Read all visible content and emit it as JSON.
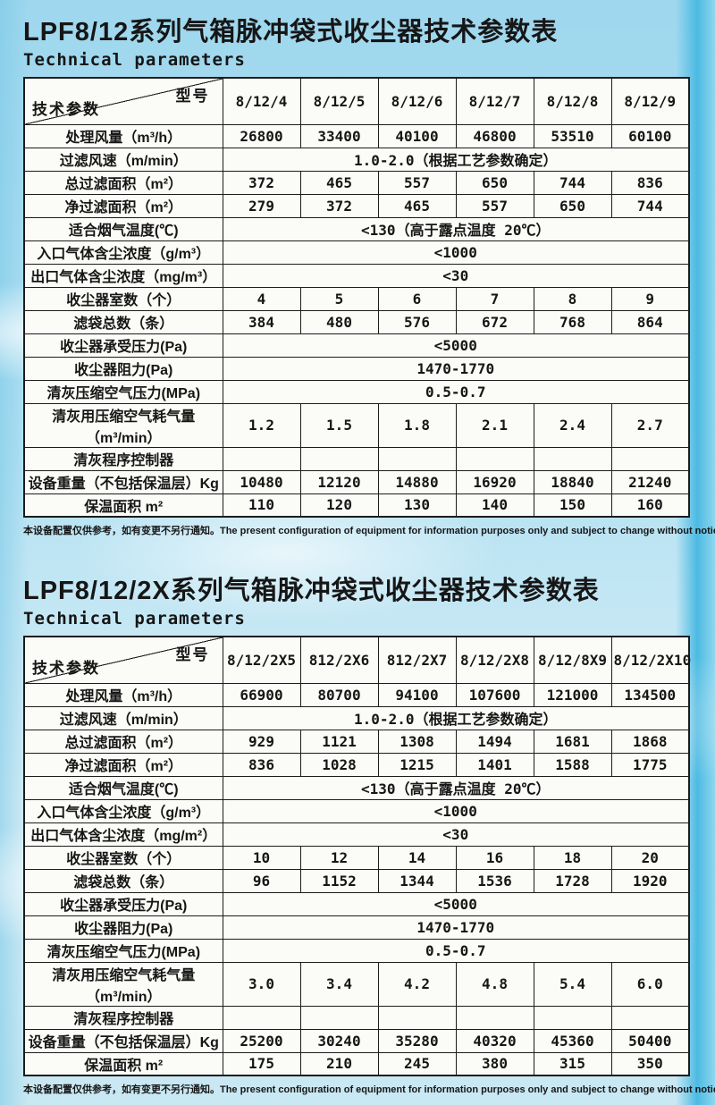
{
  "tables": [
    {
      "title": "LPF8/12系列气箱脉冲袋式收尘器技术参数表",
      "subtitle": "Technical parameters",
      "corner": {
        "model_label": "型号",
        "param_label": "技术参数"
      },
      "models": [
        "8/12/4",
        "8/12/5",
        "8/12/6",
        "8/12/7",
        "8/12/8",
        "8/12/9"
      ],
      "rows": [
        {
          "label": "处理风量（m³/h）",
          "values": [
            "26800",
            "33400",
            "40100",
            "46800",
            "53510",
            "60100"
          ]
        },
        {
          "label": "过滤风速（m/min）",
          "span": "1.0-2.0（根据工艺参数确定）"
        },
        {
          "label": "总过滤面积（m²）",
          "values": [
            "372",
            "465",
            "557",
            "650",
            "744",
            "836"
          ]
        },
        {
          "label": "净过滤面积（m²）",
          "values": [
            "279",
            "372",
            "465",
            "557",
            "650",
            "744"
          ]
        },
        {
          "label": "适合烟气温度(℃)",
          "span": "<130（高于露点温度 20℃）"
        },
        {
          "label": "入口气体含尘浓度（g/m³）",
          "span": "<1000"
        },
        {
          "label": "出口气体含尘浓度（mg/m³）",
          "span": "<30"
        },
        {
          "label": "收尘器室数（个）",
          "values": [
            "4",
            "5",
            "6",
            "7",
            "8",
            "9"
          ]
        },
        {
          "label": "滤袋总数（条）",
          "values": [
            "384",
            "480",
            "576",
            "672",
            "768",
            "864"
          ]
        },
        {
          "label": "收尘器承受压力(Pa)",
          "span": "<5000"
        },
        {
          "label": "收尘器阻力(Pa)",
          "span": "1470-1770"
        },
        {
          "label": "清灰压缩空气压力(MPa)",
          "span": "0.5-0.7"
        },
        {
          "label": "清灰用压缩空气耗气量",
          "label2": "（m³/min）",
          "values": [
            "1.2",
            "1.5",
            "1.8",
            "2.1",
            "2.4",
            "2.7"
          ]
        },
        {
          "label": "清灰程序控制器",
          "values": [
            "",
            "",
            "",
            "",
            "",
            ""
          ]
        },
        {
          "label": "设备重量（不包括保温层）Kg",
          "values": [
            "10480",
            "12120",
            "14880",
            "16920",
            "18840",
            "21240"
          ]
        },
        {
          "label": "保温面积 m²",
          "values": [
            "110",
            "120",
            "130",
            "140",
            "150",
            "160"
          ]
        }
      ],
      "footnote": "本设备配置仅供参考，如有变更不另行通知。The present configuration of equipment for information purposes only and subject to change without notice."
    },
    {
      "title": "LPF8/12/2X系列气箱脉冲袋式收尘器技术参数表",
      "subtitle": "Technical parameters",
      "corner": {
        "model_label": "型号",
        "param_label": "技术参数"
      },
      "models": [
        "8/12/2X5",
        "812/2X6",
        "812/2X7",
        "8/12/2X8",
        "8/12/8X9",
        "8/12/2X10"
      ],
      "rows": [
        {
          "label": "处理风量（m³/h）",
          "values": [
            "66900",
            "80700",
            "94100",
            "107600",
            "121000",
            "134500"
          ]
        },
        {
          "label": "过滤风速（m/min）",
          "span": "1.0-2.0（根据工艺参数确定）"
        },
        {
          "label": "总过滤面积（m²）",
          "values": [
            "929",
            "1121",
            "1308",
            "1494",
            "1681",
            "1868"
          ]
        },
        {
          "label": "净过滤面积（m²）",
          "values": [
            "836",
            "1028",
            "1215",
            "1401",
            "1588",
            "1775"
          ]
        },
        {
          "label": "适合烟气温度(℃)",
          "span": "<130（高于露点温度 20℃）"
        },
        {
          "label": "入口气体含尘浓度（g/m³）",
          "span": "<1000"
        },
        {
          "label": "出口气体含尘浓度（mg/m²）",
          "span": "<30"
        },
        {
          "label": "收尘器室数（个）",
          "values": [
            "10",
            "12",
            "14",
            "16",
            "18",
            "20"
          ]
        },
        {
          "label": "滤袋总数（条）",
          "values": [
            "96",
            "1152",
            "1344",
            "1536",
            "1728",
            "1920"
          ]
        },
        {
          "label": "收尘器承受压力(Pa)",
          "span": "<5000"
        },
        {
          "label": "收尘器阻力(Pa)",
          "span": "1470-1770"
        },
        {
          "label": "清灰压缩空气压力(MPa)",
          "span": "0.5-0.7"
        },
        {
          "label": "清灰用压缩空气耗气量",
          "label2": "（m³/min）",
          "values": [
            "3.0",
            "3.4",
            "4.2",
            "4.8",
            "5.4",
            "6.0"
          ]
        },
        {
          "label": "清灰程序控制器",
          "values": [
            "",
            "",
            "",
            "",
            "",
            ""
          ]
        },
        {
          "label": "设备重量（不包括保温层）Kg",
          "values": [
            "25200",
            "30240",
            "35280",
            "40320",
            "45360",
            "50400"
          ]
        },
        {
          "label": "保温面积 m²",
          "values": [
            "175",
            "210",
            "245",
            "380",
            "315",
            "350"
          ]
        }
      ],
      "footnote": "本设备配置仅供参考，如有变更不另行通知。The present configuration of equipment for information purposes only and subject to change without notice."
    }
  ],
  "colors": {
    "sky_top": "#9ed7ee",
    "sky_right_band": "#4cbae2",
    "table_bg": "#fbfbf7",
    "border": "#1c1c1c",
    "text": "#161616"
  }
}
